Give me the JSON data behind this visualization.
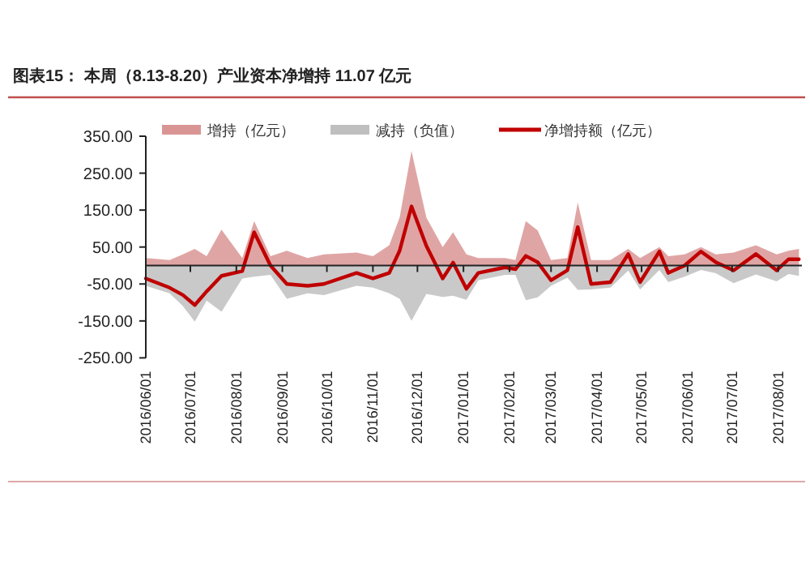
{
  "chart_data": {
    "type": "area",
    "title": "图表15： 本周（8.13-8.20）产业资本净增持 11.07 亿元",
    "x": [
      "2016-06-01",
      "2016-06-17",
      "2016-06-26",
      "2016-07-04",
      "2016-07-12",
      "2016-07-22",
      "2016-08-05",
      "2016-08-13",
      "2016-08-24",
      "2016-09-04",
      "2016-09-18",
      "2016-09-29",
      "2016-10-21",
      "2016-11-01",
      "2016-11-12",
      "2016-11-19",
      "2016-11-27",
      "2016-12-07",
      "2016-12-18",
      "2016-12-25",
      "2017-01-03",
      "2017-01-11",
      "2017-01-29",
      "2017-02-05",
      "2017-02-12",
      "2017-02-20",
      "2017-03-01",
      "2017-03-12",
      "2017-03-19",
      "2017-03-28",
      "2017-04-10",
      "2017-04-22",
      "2017-04-30",
      "2017-05-13",
      "2017-05-19",
      "2017-05-30",
      "2017-06-10",
      "2017-06-20",
      "2017-07-02",
      "2017-07-17",
      "2017-07-31",
      "2017-08-08",
      "2017-08-15"
    ],
    "series": [
      {
        "name": "增持（亿元）",
        "color": "#d99594",
        "values": [
          20,
          15,
          30,
          45,
          25,
          97,
          20,
          120,
          25,
          40,
          20,
          30,
          35,
          25,
          55,
          130,
          310,
          130,
          50,
          90,
          30,
          20,
          20,
          15,
          120,
          95,
          15,
          20,
          170,
          15,
          15,
          45,
          20,
          50,
          25,
          30,
          50,
          30,
          35,
          55,
          30,
          40,
          45
        ]
      },
      {
        "name": "减持（负值）",
        "color": "#bfbfbf",
        "values": [
          -55,
          -75,
          -110,
          -152,
          -95,
          -125,
          -35,
          -30,
          -25,
          -90,
          -75,
          -80,
          -55,
          -60,
          -75,
          -90,
          -150,
          -77,
          -85,
          -82,
          -93,
          -40,
          -25,
          -25,
          -94,
          -86,
          -55,
          -33,
          -66,
          -65,
          -60,
          -14,
          -65,
          -12,
          -45,
          -30,
          -12,
          -21,
          -48,
          -24,
          -43,
          -23,
          -28
        ]
      },
      {
        "name": "净增持额（亿元）",
        "type": "line",
        "color": "#c00000",
        "values": [
          -35,
          -60,
          -80,
          -107,
          -70,
          -28,
          -15,
          90,
          0,
          -50,
          -55,
          -50,
          -20,
          -35,
          -20,
          40,
          160,
          53,
          -35,
          8,
          -63,
          -20,
          -5,
          -10,
          26,
          9,
          -40,
          -13,
          104,
          -50,
          -45,
          31,
          -45,
          38,
          -20,
          0,
          38,
          9,
          -13,
          31,
          -13,
          17,
          17
        ]
      }
    ],
    "xlim": [
      "2016-06-01",
      "2017-08-17"
    ],
    "xticks": [
      {
        "value": "2016-06-01",
        "label": "2016/06/01"
      },
      {
        "value": "2016-07-01",
        "label": "2016/07/01"
      },
      {
        "value": "2016-08-01",
        "label": "2016/08/01"
      },
      {
        "value": "2016-09-01",
        "label": "2016/09/01"
      },
      {
        "value": "2016-10-01",
        "label": "2016/10/01"
      },
      {
        "value": "2016-11-01",
        "label": "2016/11/01"
      },
      {
        "value": "2016-12-01",
        "label": "2016/12/01"
      },
      {
        "value": "2017-01-01",
        "label": "2017/01/01"
      },
      {
        "value": "2017-02-01",
        "label": "2017/02/01"
      },
      {
        "value": "2017-03-01",
        "label": "2017/03/01"
      },
      {
        "value": "2017-04-01",
        "label": "2017/04/01"
      },
      {
        "value": "2017-05-01",
        "label": "2017/05/01"
      },
      {
        "value": "2017-06-01",
        "label": "2017/06/01"
      },
      {
        "value": "2017-07-01",
        "label": "2017/07/01"
      },
      {
        "value": "2017-08-01",
        "label": "2017/08/01"
      }
    ],
    "ylim": [
      -250,
      350
    ],
    "yticks": [
      {
        "value": 350,
        "label": "350.00"
      },
      {
        "value": 250,
        "label": "250.00"
      },
      {
        "value": 150,
        "label": "150.00"
      },
      {
        "value": 50,
        "label": "50.00"
      },
      {
        "value": -50,
        "label": "-50.00"
      },
      {
        "value": -150,
        "label": "-150.00"
      },
      {
        "value": -250,
        "label": "-250.00"
      }
    ],
    "legend": "top",
    "grid": false
  }
}
